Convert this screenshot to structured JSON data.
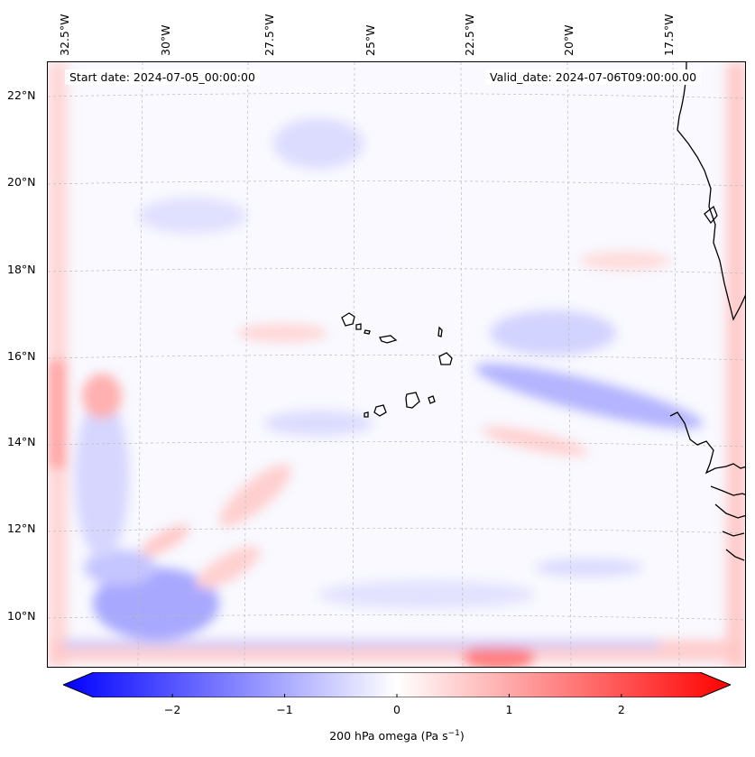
{
  "map": {
    "start_label": "Start date: 2024-07-05_00:00:00",
    "valid_label": "Valid_date: 2024-07-06T09:00:00.00",
    "lon_labels": [
      "32.5°W",
      "30°W",
      "27.5°W",
      "25°W",
      "22.5°W",
      "20°W",
      "17.5°W"
    ],
    "lat_labels": [
      "22°N",
      "20°N",
      "18°N",
      "16°N",
      "14°N",
      "12°N",
      "10°N"
    ]
  },
  "colorbar": {
    "label_text": "200 hPa omega (Pa s",
    "label_exp": "−1",
    "label_close": ")",
    "ticks": [
      "−2",
      "−1",
      "0",
      "1",
      "2"
    ],
    "range": [
      -2.7,
      2.7
    ],
    "colors": {
      "negative": "#0000ff",
      "zero": "#ffffff",
      "positive": "#ff0000"
    }
  },
  "features": {
    "coastline_color": "#000000",
    "islands": "Cape Verde",
    "coast": "West Africa"
  }
}
